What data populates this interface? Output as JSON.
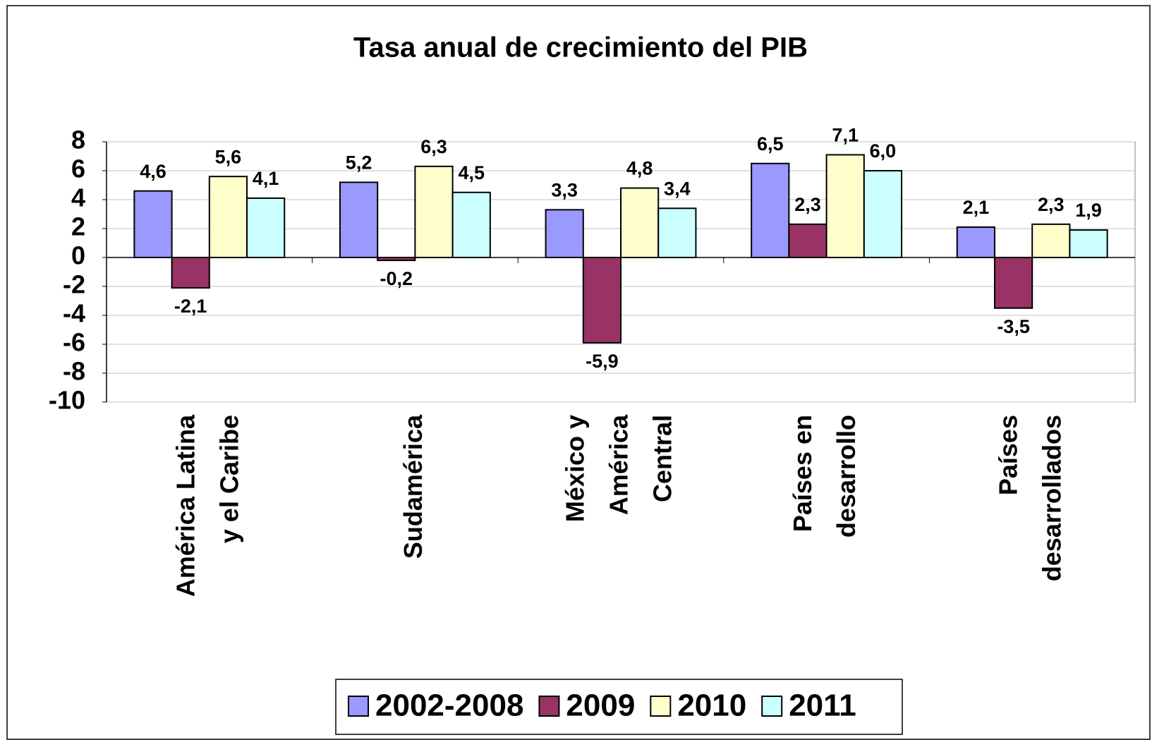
{
  "chart_data": {
    "type": "bar",
    "title": "Tasa anual de crecimiento del PIB",
    "categories": [
      [
        "América Latina",
        "y el Caribe"
      ],
      [
        "Sudamérica"
      ],
      [
        "México y",
        "América",
        "Central"
      ],
      [
        "Países en",
        "desarrollo"
      ],
      [
        "Países",
        "desarrollados"
      ]
    ],
    "series": [
      {
        "name": "2002-2008",
        "color": "#9999ff",
        "values": [
          4.6,
          5.2,
          3.3,
          6.5,
          2.1
        ],
        "value_labels": [
          "4,6",
          "5,2",
          "3,3",
          "6,5",
          "2,1"
        ]
      },
      {
        "name": "2009",
        "color": "#993366",
        "values": [
          -2.1,
          -0.2,
          -5.9,
          2.3,
          -3.5
        ],
        "value_labels": [
          "-2,1",
          "-0,2",
          "-5,9",
          "2,3",
          "-3,5"
        ]
      },
      {
        "name": "2010",
        "color": "#ffffcc",
        "values": [
          5.6,
          6.3,
          4.8,
          7.1,
          2.3
        ],
        "value_labels": [
          "5,6",
          "6,3",
          "4,8",
          "7,1",
          "2,3"
        ]
      },
      {
        "name": "2011",
        "color": "#ccffff",
        "values": [
          4.1,
          4.5,
          3.4,
          6.0,
          1.9
        ],
        "value_labels": [
          "4,1",
          "4,5",
          "3,4",
          "6,0",
          "1,9"
        ]
      }
    ],
    "ylim": [
      -10,
      8
    ],
    "yticks": [
      -10,
      -8,
      -6,
      -4,
      -2,
      0,
      2,
      4,
      6,
      8
    ],
    "grid": true,
    "legend": "bottom"
  }
}
